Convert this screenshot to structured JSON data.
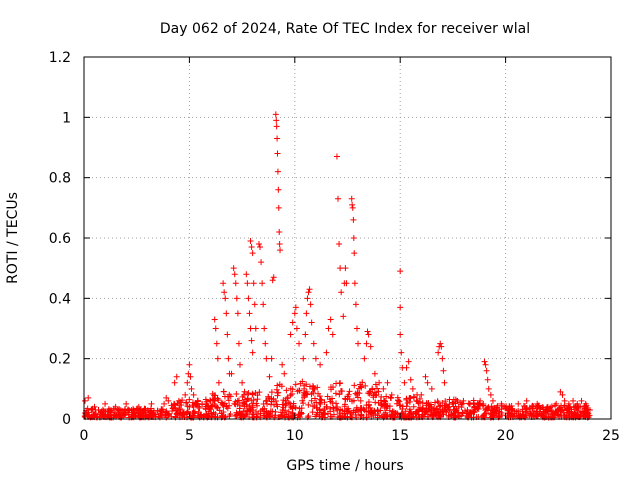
{
  "chart_data": {
    "type": "scatter",
    "title": "Day 062 of 2024, Rate Of TEC Index for receiver wlal",
    "xlabel": "GPS time / hours",
    "ylabel": "ROTI / TECUs",
    "xlim": [
      0,
      25
    ],
    "ylim": [
      0,
      1.2
    ],
    "x_ticks": [
      0,
      5,
      10,
      15,
      20,
      25
    ],
    "x_tick_labels": [
      "0",
      "5",
      "10",
      "15",
      "20",
      "25"
    ],
    "y_ticks": [
      0,
      0.2,
      0.4,
      0.6,
      0.8,
      1,
      1.2
    ],
    "y_tick_labels": [
      "0",
      "0.2",
      "0.4",
      "0.6",
      "0.8",
      "1",
      "1.2"
    ],
    "grid": true,
    "marker": "+",
    "series": [
      {
        "name": "ROTI",
        "color": "#ff0000",
        "points": [
          [
            0.05,
            0.06
          ],
          [
            0.2,
            0.07
          ],
          [
            0.5,
            0.04
          ],
          [
            1.0,
            0.05
          ],
          [
            1.5,
            0.04
          ],
          [
            2.0,
            0.05
          ],
          [
            2.6,
            0.04
          ],
          [
            3.2,
            0.05
          ],
          [
            3.8,
            0.05
          ],
          [
            3.9,
            0.07
          ],
          [
            4.0,
            0.06
          ],
          [
            4.3,
            0.12
          ],
          [
            4.4,
            0.14
          ],
          [
            4.5,
            0.06
          ],
          [
            4.8,
            0.08
          ],
          [
            4.9,
            0.12
          ],
          [
            4.95,
            0.15
          ],
          [
            5.0,
            0.18
          ],
          [
            5.05,
            0.14
          ],
          [
            5.1,
            0.1
          ],
          [
            5.2,
            0.08
          ],
          [
            5.4,
            0.06
          ],
          [
            5.8,
            0.05
          ],
          [
            6.0,
            0.06
          ],
          [
            6.2,
            0.33
          ],
          [
            6.25,
            0.3
          ],
          [
            6.3,
            0.25
          ],
          [
            6.35,
            0.2
          ],
          [
            6.4,
            0.12
          ],
          [
            6.6,
            0.45
          ],
          [
            6.65,
            0.42
          ],
          [
            6.7,
            0.4
          ],
          [
            6.75,
            0.35
          ],
          [
            6.8,
            0.28
          ],
          [
            6.85,
            0.2
          ],
          [
            6.9,
            0.15
          ],
          [
            7.0,
            0.15
          ],
          [
            7.1,
            0.5
          ],
          [
            7.15,
            0.48
          ],
          [
            7.2,
            0.45
          ],
          [
            7.25,
            0.4
          ],
          [
            7.3,
            0.35
          ],
          [
            7.35,
            0.25
          ],
          [
            7.4,
            0.18
          ],
          [
            7.5,
            0.12
          ],
          [
            7.7,
            0.48
          ],
          [
            7.75,
            0.45
          ],
          [
            7.8,
            0.4
          ],
          [
            7.85,
            0.35
          ],
          [
            7.9,
            0.3
          ],
          [
            7.95,
            0.26
          ],
          [
            8.0,
            0.22
          ],
          [
            7.9,
            0.59
          ],
          [
            7.95,
            0.57
          ],
          [
            8.0,
            0.55
          ],
          [
            8.05,
            0.45
          ],
          [
            8.1,
            0.38
          ],
          [
            8.15,
            0.3
          ],
          [
            8.3,
            0.58
          ],
          [
            8.35,
            0.57
          ],
          [
            8.4,
            0.52
          ],
          [
            8.45,
            0.45
          ],
          [
            8.5,
            0.38
          ],
          [
            8.55,
            0.3
          ],
          [
            8.6,
            0.25
          ],
          [
            8.65,
            0.2
          ],
          [
            8.8,
            0.14
          ],
          [
            8.9,
            0.2
          ],
          [
            8.95,
            0.46
          ],
          [
            9.0,
            0.47
          ],
          [
            9.1,
            1.01
          ],
          [
            9.12,
            0.99
          ],
          [
            9.14,
            0.97
          ],
          [
            9.16,
            0.93
          ],
          [
            9.18,
            0.88
          ],
          [
            9.2,
            0.82
          ],
          [
            9.22,
            0.76
          ],
          [
            9.24,
            0.7
          ],
          [
            9.26,
            0.62
          ],
          [
            9.28,
            0.58
          ],
          [
            9.3,
            0.56
          ],
          [
            9.4,
            0.18
          ],
          [
            9.5,
            0.15
          ],
          [
            9.8,
            0.28
          ],
          [
            9.9,
            0.32
          ],
          [
            10.0,
            0.35
          ],
          [
            10.05,
            0.37
          ],
          [
            10.1,
            0.3
          ],
          [
            10.2,
            0.25
          ],
          [
            10.4,
            0.2
          ],
          [
            10.5,
            0.28
          ],
          [
            10.55,
            0.35
          ],
          [
            10.6,
            0.4
          ],
          [
            10.65,
            0.42
          ],
          [
            10.7,
            0.43
          ],
          [
            10.75,
            0.38
          ],
          [
            10.8,
            0.32
          ],
          [
            10.9,
            0.25
          ],
          [
            11.0,
            0.2
          ],
          [
            11.2,
            0.18
          ],
          [
            11.5,
            0.22
          ],
          [
            11.6,
            0.3
          ],
          [
            11.7,
            0.33
          ],
          [
            11.8,
            0.28
          ],
          [
            12.0,
            0.87
          ],
          [
            12.05,
            0.73
          ],
          [
            12.1,
            0.58
          ],
          [
            12.15,
            0.5
          ],
          [
            12.2,
            0.42
          ],
          [
            12.3,
            0.34
          ],
          [
            12.35,
            0.45
          ],
          [
            12.4,
            0.5
          ],
          [
            12.45,
            0.45
          ],
          [
            12.7,
            0.73
          ],
          [
            12.72,
            0.71
          ],
          [
            12.75,
            0.7
          ],
          [
            12.78,
            0.66
          ],
          [
            12.8,
            0.6
          ],
          [
            12.82,
            0.55
          ],
          [
            12.85,
            0.45
          ],
          [
            12.9,
            0.38
          ],
          [
            12.95,
            0.3
          ],
          [
            13.0,
            0.25
          ],
          [
            13.3,
            0.2
          ],
          [
            13.4,
            0.25
          ],
          [
            13.45,
            0.29
          ],
          [
            13.5,
            0.28
          ],
          [
            13.6,
            0.24
          ],
          [
            13.8,
            0.15
          ],
          [
            14.0,
            0.12
          ],
          [
            14.2,
            0.1
          ],
          [
            14.4,
            0.12
          ],
          [
            14.6,
            0.08
          ],
          [
            15.0,
            0.49
          ],
          [
            15.0,
            0.37
          ],
          [
            15.0,
            0.28
          ],
          [
            15.05,
            0.22
          ],
          [
            15.1,
            0.17
          ],
          [
            15.2,
            0.12
          ],
          [
            15.3,
            0.17
          ],
          [
            15.4,
            0.19
          ],
          [
            15.5,
            0.13
          ],
          [
            15.6,
            0.1
          ],
          [
            15.8,
            0.08
          ],
          [
            16.0,
            0.08
          ],
          [
            16.2,
            0.14
          ],
          [
            16.3,
            0.12
          ],
          [
            16.5,
            0.1
          ],
          [
            16.8,
            0.22
          ],
          [
            16.85,
            0.24
          ],
          [
            16.9,
            0.25
          ],
          [
            16.95,
            0.24
          ],
          [
            17.0,
            0.2
          ],
          [
            17.05,
            0.16
          ],
          [
            17.1,
            0.12
          ],
          [
            17.5,
            0.05
          ],
          [
            18.0,
            0.06
          ],
          [
            18.5,
            0.05
          ],
          [
            19.0,
            0.19
          ],
          [
            19.05,
            0.18
          ],
          [
            19.1,
            0.16
          ],
          [
            19.15,
            0.13
          ],
          [
            19.2,
            0.1
          ],
          [
            19.3,
            0.08
          ],
          [
            19.4,
            0.06
          ],
          [
            19.8,
            0.05
          ],
          [
            20.2,
            0.04
          ],
          [
            20.6,
            0.05
          ],
          [
            21.0,
            0.06
          ],
          [
            21.5,
            0.05
          ],
          [
            22.0,
            0.04
          ],
          [
            22.4,
            0.05
          ],
          [
            22.6,
            0.09
          ],
          [
            22.7,
            0.08
          ],
          [
            22.8,
            0.06
          ],
          [
            23.0,
            0.05
          ],
          [
            23.2,
            0.06
          ],
          [
            23.4,
            0.05
          ],
          [
            23.6,
            0.06
          ],
          [
            23.8,
            0.05
          ],
          [
            24.0,
            0.03
          ]
        ]
      }
    ],
    "background_band": {
      "description": "dense low-level ROTI values along the bottom of the plot",
      "segments": [
        [
          0,
          4,
          0.03
        ],
        [
          4,
          6,
          0.06
        ],
        [
          6,
          9,
          0.09
        ],
        [
          9,
          14,
          0.12
        ],
        [
          14,
          16,
          0.07
        ],
        [
          16,
          19,
          0.06
        ],
        [
          19,
          24,
          0.04
        ]
      ]
    }
  }
}
